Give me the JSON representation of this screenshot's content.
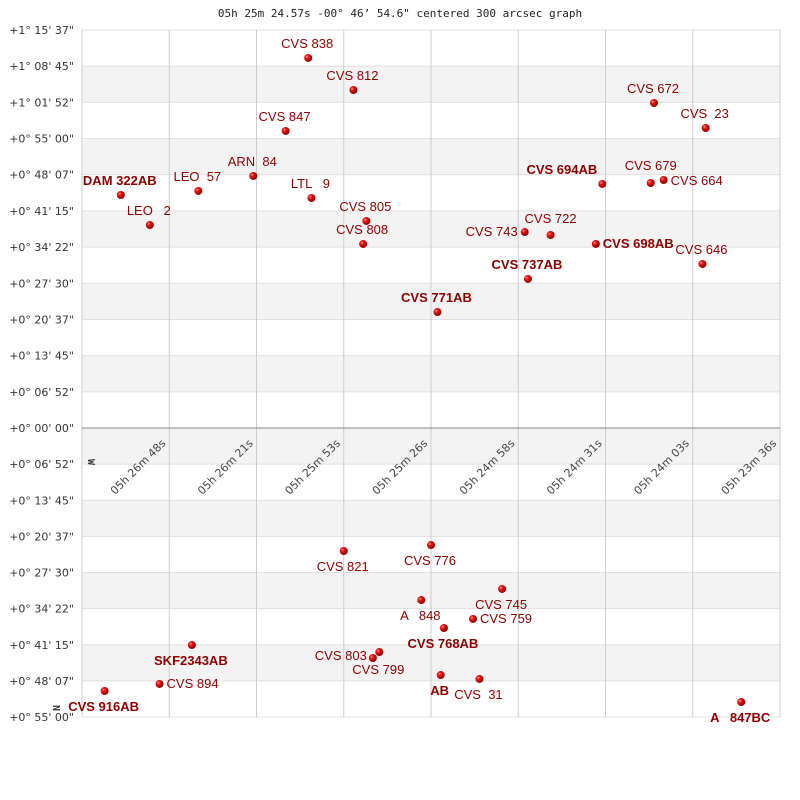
{
  "chart_data": {
    "type": "scatter",
    "title": "05h 25m 24.57s -00° 46’ 54.6\" centered 300 arcsec graph",
    "x_ticks": [
      "05h 26m 48s",
      "05h 26m 21s",
      "05h 25m 53s",
      "05h 25m 26s",
      "05h 24m 58s",
      "05h 24m 31s",
      "05h 24m 03s",
      "05h 23m 36s"
    ],
    "y_ticks_upper": [
      "+1° 15' 37\"",
      "+1° 08' 45\"",
      "+1° 01' 52\"",
      "+0° 55' 00\"",
      "+0° 48' 07\"",
      "+0° 41' 15\"",
      "+0° 34' 22\"",
      "+0° 27' 30\"",
      "+0° 20' 37\"",
      "+0° 13' 45\"",
      "+0° 06' 52\"",
      "+0° 00' 00\""
    ],
    "y_ticks_lower": [
      "+0° 06' 52\"",
      "+0° 13' 45\"",
      "+0° 20' 37\"",
      "+0° 27' 30\"",
      "+0° 34' 22\"",
      "+0° 41' 15\"",
      "+0° 48' 07\"",
      "+0° 55' 00\""
    ],
    "direction_markers": {
      "west": "W",
      "north": "N"
    },
    "grid": true,
    "colors": {
      "point": "#dd0000",
      "label": "#8b0000",
      "band": "#f3f3f3",
      "grid": "#cccccc"
    },
    "series": [
      {
        "panel": "upper",
        "points": [
          {
            "name": "CVS 838",
            "ra": "05h 26m 05s",
            "dec": "+1° 10' 18\""
          },
          {
            "name": "CVS 812",
            "ra": "05h 25m 51s",
            "dec": "+1° 04' 13\""
          },
          {
            "name": "CVS 672",
            "ra": "05h 24m 18s",
            "dec": "+1° 01' 45\""
          },
          {
            "name": "CVS  23",
            "ra": "05h 24m 02s",
            "dec": "+0° 57' 00\""
          },
          {
            "name": "CVS 847",
            "ra": "05h 26m 12s",
            "dec": "+0° 56' 26\""
          },
          {
            "name": "ARN  84",
            "ra": "05h 26m 22s",
            "dec": "+0° 47' 53\""
          },
          {
            "name": "LEO  57",
            "ra": "05h 26m 39s",
            "dec": "+0° 45' 02\""
          },
          {
            "name": "DAM 322AB",
            "ra": "05h 27m 03s",
            "dec": "+0° 44' 16\"",
            "emphasized": true
          },
          {
            "name": "LTL   9",
            "ra": "05h 26m 04s",
            "dec": "+0° 43' 42\""
          },
          {
            "name": "LEO   2",
            "ra": "05h 26m 54s",
            "dec": "+0° 38' 34\""
          },
          {
            "name": "CVS 805",
            "ra": "05h 25m 47s",
            "dec": "+0° 39' 20\""
          },
          {
            "name": "CVS 808",
            "ra": "05h 25m 48s",
            "dec": "+0° 34' 58\""
          },
          {
            "name": "CVS 694AB",
            "ra": "05h 24m 34s",
            "dec": "+0° 46' 22\"",
            "emphasized": true
          },
          {
            "name": "CVS 679",
            "ra": "05h 24m 19s",
            "dec": "+0° 46' 33\""
          },
          {
            "name": "CVS 664",
            "ra": "05h 24m 15s",
            "dec": "+0° 47' 07\""
          },
          {
            "name": "CVS 743",
            "ra": "05h 24m 58s",
            "dec": "+0° 37' 14\""
          },
          {
            "name": "CVS 722",
            "ra": "05h 24m 50s",
            "dec": "+0° 36' 40\""
          },
          {
            "name": "CVS 698AB",
            "ra": "05h 24m 36s",
            "dec": "+0° 34' 58\"",
            "emphasized": true
          },
          {
            "name": "CVS 646",
            "ra": "05h 24m 03s",
            "dec": "+0° 31' 10\""
          },
          {
            "name": "CVS 737AB",
            "ra": "05h 24m 57s",
            "dec": "+0° 28' 19\"",
            "emphasized": true
          },
          {
            "name": "CVS 771AB",
            "ra": "05h 25m 25s",
            "dec": "+0° 22' 02\"",
            "emphasized": true
          }
        ]
      },
      {
        "panel": "lower",
        "points": [
          {
            "name": "CVS 821",
            "ra": "05h 25m 54s",
            "dec": "+0° 23' 22\""
          },
          {
            "name": "CVS 776",
            "ra": "05h 25m 27s",
            "dec": "+0° 22' 14\""
          },
          {
            "name": "CVS 745",
            "ra": "05h 25m 05s",
            "dec": "+0° 30' 35\""
          },
          {
            "name": "A   848",
            "ra": "05h 25m 30s",
            "dec": "+0° 32' 41\""
          },
          {
            "name": "CVS 759",
            "ra": "05h 25m 14s",
            "dec": "+0° 36' 17\""
          },
          {
            "name": "CVS 768AB",
            "ra": "05h 25m 23s",
            "dec": "+0° 38' 00\"",
            "emphasized": true
          },
          {
            "name": "CVS 799",
            "ra": "05h 25m 43s",
            "dec": "+0° 42' 34\""
          },
          {
            "name": "CVS 803",
            "ra": "05h 25m 45s",
            "dec": "+0° 43' 42\""
          },
          {
            "name": "AB",
            "ra": "05h 25m 24s",
            "dec": "+0° 46' 56\"",
            "emphasized": true
          },
          {
            "name": "CVS  31",
            "ra": "05h 25m 12s",
            "dec": "+0° 47' 41\""
          },
          {
            "name": "SKF2343AB",
            "ra": "05h 26m 41s",
            "dec": "+0° 41' 14\"",
            "emphasized": true
          },
          {
            "name": "CVS 894",
            "ra": "05h 26m 51s",
            "dec": "+0° 48' 38\""
          },
          {
            "name": "CVS 916AB",
            "ra": "05h 27m 08s",
            "dec": "+0° 49' 58\"",
            "emphasized": true
          },
          {
            "name": "A   847BC",
            "ra": "05h 23m 51s",
            "dec": "+0° 52' 04\"",
            "emphasized": true
          }
        ]
      }
    ]
  }
}
